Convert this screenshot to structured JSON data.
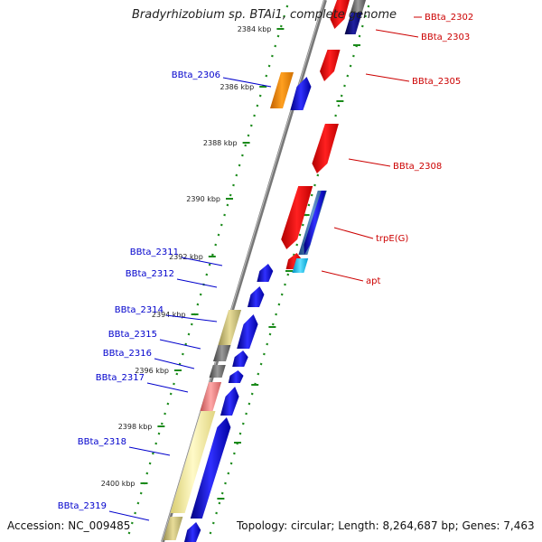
{
  "title": "Bradyrhizobium sp. BTAi1, complete genome",
  "footer": {
    "accession": "Accession: NC_009485",
    "summary": "Topology: circular; Length: 8,264,687 bp; Genes: 7,463"
  },
  "colors": {
    "forward_label": "#0000cc",
    "reverse_label": "#cc0000",
    "ticks": "#1a8a1a",
    "backbone": "#888888"
  },
  "ticks": [
    {
      "label": "2384 kbp"
    },
    {
      "label": "2386 kbp"
    },
    {
      "label": "2388 kbp"
    },
    {
      "label": "2390 kbp"
    },
    {
      "label": "2392 kbp"
    },
    {
      "label": "2394 kbp"
    },
    {
      "label": "2396 kbp"
    },
    {
      "label": "2398 kbp"
    },
    {
      "label": "2400 kbp"
    }
  ],
  "genes_forward": [
    {
      "label": "BBta_2306",
      "color": "orange"
    },
    {
      "label": "BBta_2311",
      "color": "blue"
    },
    {
      "label": "BBta_2312",
      "color": "blue"
    },
    {
      "label": "BBta_2314",
      "color": "khaki"
    },
    {
      "label": "BBta_2315",
      "color": "gray"
    },
    {
      "label": "BBta_2316",
      "color": "gray"
    },
    {
      "label": "BBta_2317",
      "color": "pink"
    },
    {
      "label": "BBta_2318",
      "color": "yellow"
    },
    {
      "label": "BBta_2319",
      "color": "khaki"
    }
  ],
  "genes_reverse": [
    {
      "label": "BBta_2302",
      "color": "red"
    },
    {
      "label": "BBta_2303",
      "color": "navy"
    },
    {
      "label": "BBta_2305",
      "color": "red"
    },
    {
      "label": "BBta_2308",
      "color": "red"
    },
    {
      "label": "trpE(G)",
      "color": "red"
    },
    {
      "label": "apt",
      "color": "cyan"
    }
  ]
}
